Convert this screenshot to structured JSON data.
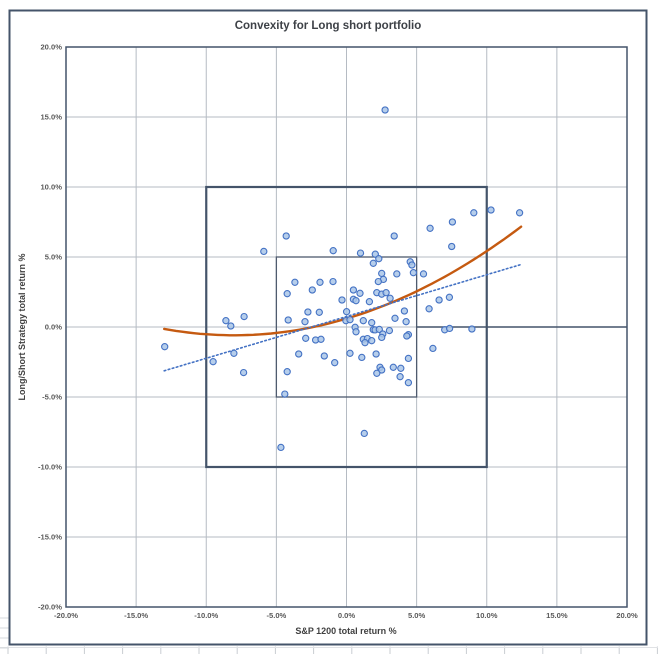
{
  "chart_data": {
    "type": "scatter",
    "title": "Convexity for Long short portfolio",
    "xlabel": "S&P 1200 total return %",
    "ylabel": "Long/Short Strategy total return %",
    "xlim": [
      -20,
      20
    ],
    "ylim": [
      -20,
      20
    ],
    "grid": "on",
    "x_tick_values": [
      -20,
      -15,
      -10,
      -5,
      0,
      5,
      10,
      15,
      20
    ],
    "x_tick_labels": [
      "-20.0%",
      "-15.0%",
      "-10.0%",
      "-5.0%",
      "0.0%",
      "5.0%",
      "10.0%",
      "15.0%",
      "20.0%"
    ],
    "y_tick_values": [
      -20,
      -15,
      -10,
      -5,
      0,
      5,
      10,
      15,
      20
    ],
    "y_tick_labels": [
      "-20.0%",
      "-15.0%",
      "-10.0%",
      "-5.0%",
      "0.0%",
      "5.0%",
      "10.0%",
      "15.0%",
      "20.0%"
    ],
    "points": [
      [
        2.75,
        15.5
      ],
      [
        -4.3,
        6.5
      ],
      [
        3.4,
        6.5
      ],
      [
        5.96,
        7.05
      ],
      [
        7.55,
        7.5
      ],
      [
        9.08,
        8.16
      ],
      [
        10.3,
        8.36
      ],
      [
        12.34,
        8.16
      ],
      [
        7.5,
        5.75
      ],
      [
        -5.9,
        5.4
      ],
      [
        -0.95,
        5.45
      ],
      [
        1.0,
        5.28
      ],
      [
        2.05,
        5.2
      ],
      [
        2.3,
        4.88
      ],
      [
        4.54,
        4.66
      ],
      [
        4.66,
        4.43
      ],
      [
        1.91,
        4.55
      ],
      [
        -3.68,
        3.19
      ],
      [
        -4.23,
        2.38
      ],
      [
        -2.44,
        2.64
      ],
      [
        -1.89,
        3.19
      ],
      [
        -0.96,
        3.24
      ],
      [
        -0.32,
        1.93
      ],
      [
        4.77,
        3.88
      ],
      [
        5.49,
        3.79
      ],
      [
        3.59,
        3.79
      ],
      [
        2.51,
        3.83
      ],
      [
        2.63,
        3.4
      ],
      [
        2.27,
        3.24
      ],
      [
        0.49,
        2.64
      ],
      [
        0.96,
        2.41
      ],
      [
        2.16,
        2.45
      ],
      [
        2.51,
        2.34
      ],
      [
        2.82,
        2.45
      ],
      [
        3.11,
        2.05
      ],
      [
        0.49,
        1.98
      ],
      [
        0.68,
        1.88
      ],
      [
        1.63,
        1.81
      ],
      [
        -2.75,
        1.07
      ],
      [
        -1.94,
        1.05
      ],
      [
        0.01,
        1.09
      ],
      [
        4.13,
        1.14
      ],
      [
        5.89,
        1.3
      ],
      [
        6.6,
        1.93
      ],
      [
        7.34,
        2.12
      ],
      [
        -4.16,
        0.5
      ],
      [
        -2.96,
        0.38
      ],
      [
        -7.3,
        0.74
      ],
      [
        -8.6,
        0.45
      ],
      [
        -8.25,
        0.07
      ],
      [
        1.2,
        0.45
      ],
      [
        1.8,
        0.31
      ],
      [
        3.46,
        0.62
      ],
      [
        4.25,
        0.38
      ],
      [
        -0.04,
        0.45
      ],
      [
        0.25,
        0.52
      ],
      [
        0.61,
        -0.02
      ],
      [
        0.68,
        -0.34
      ],
      [
        1.91,
        -0.19
      ],
      [
        2.04,
        -0.21
      ],
      [
        2.34,
        -0.17
      ],
      [
        3.06,
        -0.26
      ],
      [
        2.59,
        -0.5
      ],
      [
        4.41,
        -0.55
      ],
      [
        7.0,
        -0.2
      ],
      [
        7.35,
        -0.1
      ],
      [
        8.94,
        -0.14
      ],
      [
        -2.91,
        -0.81
      ],
      [
        -2.2,
        -0.93
      ],
      [
        -1.82,
        -0.88
      ],
      [
        1.2,
        -0.88
      ],
      [
        1.49,
        -0.83
      ],
      [
        1.32,
        -1.12
      ],
      [
        1.8,
        -0.98
      ],
      [
        2.51,
        -0.74
      ],
      [
        4.3,
        -0.64
      ],
      [
        -12.96,
        -1.41
      ],
      [
        -8.03,
        -1.88
      ],
      [
        -3.41,
        -1.93
      ],
      [
        -1.58,
        -2.07
      ],
      [
        0.25,
        -1.88
      ],
      [
        2.11,
        -1.93
      ],
      [
        6.16,
        -1.53
      ],
      [
        -9.51,
        -2.48
      ],
      [
        -0.84,
        -2.55
      ],
      [
        1.09,
        -2.17
      ],
      [
        4.41,
        -2.24
      ],
      [
        -7.34,
        -3.26
      ],
      [
        -4.23,
        -3.19
      ],
      [
        2.39,
        -2.88
      ],
      [
        2.51,
        -3.07
      ],
      [
        3.34,
        -2.88
      ],
      [
        3.87,
        -2.95
      ],
      [
        2.16,
        -3.31
      ],
      [
        3.82,
        -3.55
      ],
      [
        4.41,
        -3.98
      ],
      [
        -4.4,
        -4.79
      ],
      [
        1.27,
        -7.6
      ],
      [
        -4.68,
        -8.6
      ]
    ],
    "trendlines": [
      {
        "name": "polynomial-fit",
        "kind": "quadratic",
        "coeffs": [
          0.6,
          0.297,
          0.0185
        ],
        "x_range": [
          -13.0,
          12.45
        ],
        "color": "#C55A11",
        "dash": "",
        "width": 2.4
      },
      {
        "name": "linear-fit",
        "kind": "linear",
        "coeffs": [
          0.75,
          0.2984
        ],
        "x_range": [
          -13.0,
          12.4
        ],
        "color": "#4472C4",
        "dash": "1.6 2.6",
        "width": 1.6
      }
    ],
    "annotations": {
      "boxes": [
        {
          "name": "band-10pct",
          "x0": -10,
          "x1": 10,
          "y0": -10,
          "y1": 10,
          "color": "#44546A",
          "width": 2.2
        },
        {
          "name": "band-5pct",
          "x0": -5,
          "x1": 5,
          "y0": -5,
          "y1": 5,
          "color": "#4F5B6E",
          "width": 1.3
        }
      ],
      "segments": [
        {
          "name": "zero-line-right",
          "x0": 5,
          "y0": 0,
          "x1": 20,
          "y1": 0,
          "color": "#44546A",
          "width": 1.5
        }
      ]
    },
    "colors": {
      "point_fill": "#A9C5E8",
      "point_stroke": "#4472C4",
      "gridline": "#B5BBC3",
      "plot_border": "#44546A",
      "chart_border": "#44546A",
      "background": "#FFFFFF"
    },
    "legend": "none"
  },
  "worksheet": {
    "note": "excel worksheet edge marks visible outside chart frame"
  }
}
